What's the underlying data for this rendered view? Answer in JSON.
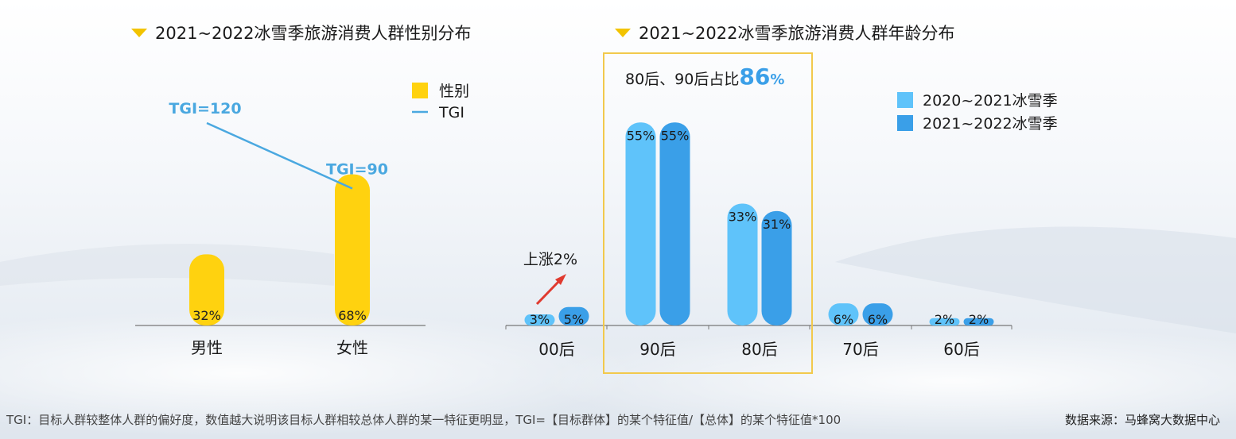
{
  "footer_note": "TGI：目标人群较整体人群的偏好度，数值越大说明该目标人群相较总体人群的某一特征更明显，TGI=【目标群体】的某个特征值/【总体】的某个特征值*100",
  "source": "数据来源：马蜂窝大数据中心",
  "chart_data": [
    {
      "type": "bar",
      "title": "2021~2022冰雪季旅游消费人群性别分布",
      "categories": [
        "男性",
        "女性"
      ],
      "series": [
        {
          "name": "性别",
          "values": [
            32,
            68
          ],
          "labels": [
            "32%",
            "68%"
          ],
          "color": "#ffd20f"
        },
        {
          "name": "TGI",
          "type": "line",
          "values": [
            120,
            90
          ],
          "labels": [
            "TGI=120",
            "TGI=90"
          ],
          "color": "#4aa8e0"
        }
      ],
      "legend": "top-right"
    },
    {
      "type": "bar",
      "title": "2021~2022冰雪季旅游消费人群年龄分布",
      "categories": [
        "00后",
        "90后",
        "80后",
        "70后",
        "60后"
      ],
      "series": [
        {
          "name": "2020~2021冰雪季",
          "values": [
            3,
            55,
            33,
            6,
            2
          ],
          "labels": [
            "3%",
            "55%",
            "33%",
            "6%",
            "2%"
          ],
          "color": "#5fc3fa"
        },
        {
          "name": "2021~2022冰雪季",
          "values": [
            5,
            55,
            31,
            6,
            2
          ],
          "labels": [
            "5%",
            "55%",
            "31%",
            "6%",
            "2%"
          ],
          "color": "#3a9fe8"
        }
      ],
      "annotations": {
        "highlight_prefix": "80后、90后占比",
        "highlight_value": "86",
        "highlight_unit": "%",
        "rise_label": "上涨2%"
      },
      "legend": "top-right"
    }
  ],
  "colors": {
    "title_triangle": "#f2c300",
    "highlight_box": "#f2c94c",
    "arrow": "#e03a2f"
  }
}
